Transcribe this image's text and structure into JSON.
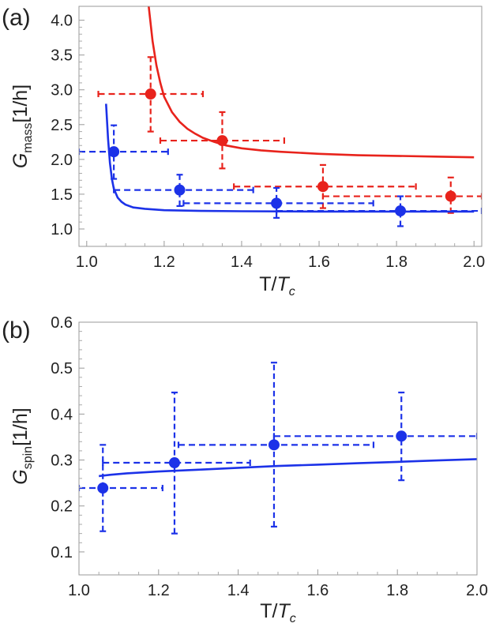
{
  "chart_data": [
    {
      "type": "scatter",
      "panel_label": "(a)",
      "xlabel_main": "T/",
      "xlabel_italic": "T",
      "xlabel_sub": "c",
      "ylabel_main": "G",
      "ylabel_sub": "mass",
      "ylabel_unit": "[1/h]",
      "xlim": [
        0.98,
        2.02
      ],
      "ylim": [
        0.75,
        4.2
      ],
      "x_ticks": [
        "1.0",
        "1.2",
        "1.4",
        "1.6",
        "1.8",
        "2.0"
      ],
      "x_tick_values": [
        1.0,
        1.2,
        1.4,
        1.6,
        1.8,
        2.0
      ],
      "y_ticks": [
        "1.0",
        "1.5",
        "2.0",
        "2.5",
        "3.0",
        "3.5",
        "4.0"
      ],
      "y_tick_values": [
        1.0,
        1.5,
        2.0,
        2.5,
        3.0,
        3.5,
        4.0
      ],
      "grid": false,
      "colors": {
        "red": "#e8231c",
        "blue": "#1c32e8"
      },
      "series": [
        {
          "color": "red",
          "points": [
            {
              "x": 1.165,
              "y": 2.94,
              "xlo": 1.03,
              "xhi": 1.3,
              "ylo": 2.4,
              "yhi": 3.47
            },
            {
              "x": 1.35,
              "y": 2.27,
              "xlo": 1.19,
              "xhi": 1.51,
              "ylo": 1.87,
              "yhi": 2.68
            },
            {
              "x": 1.61,
              "y": 1.61,
              "xlo": 1.38,
              "xhi": 1.85,
              "ylo": 1.3,
              "yhi": 1.92
            },
            {
              "x": 1.94,
              "y": 1.47,
              "xlo": 1.61,
              "xhi": 2.02,
              "ylo": 1.23,
              "yhi": 1.74
            }
          ],
          "curve": {
            "x": [
              1.16,
              1.17,
              1.18,
              1.19,
              1.2,
              1.22,
              1.24,
              1.26,
              1.28,
              1.3,
              1.33,
              1.36,
              1.4,
              1.45,
              1.5,
              1.6,
              1.7,
              1.8,
              1.9,
              2.0
            ],
            "y": [
              4.2,
              3.7,
              3.35,
              3.1,
              2.9,
              2.68,
              2.54,
              2.44,
              2.37,
              2.31,
              2.25,
              2.2,
              2.16,
              2.13,
              2.11,
              2.08,
              2.06,
              2.05,
              2.04,
              2.03
            ]
          }
        },
        {
          "color": "blue",
          "points": [
            {
              "x": 1.07,
              "y": 2.11,
              "xlo": 0.98,
              "xhi": 1.21,
              "ylo": 1.72,
              "yhi": 2.49
            },
            {
              "x": 1.24,
              "y": 1.56,
              "xlo": 1.07,
              "xhi": 1.43,
              "ylo": 1.33,
              "yhi": 1.78
            },
            {
              "x": 1.49,
              "y": 1.37,
              "xlo": 1.25,
              "xhi": 1.74,
              "ylo": 1.16,
              "yhi": 1.59
            },
            {
              "x": 1.81,
              "y": 1.26,
              "xlo": 1.49,
              "xhi": 2.02,
              "ylo": 1.04,
              "yhi": 1.47
            }
          ],
          "curve": {
            "x": [
              1.05,
              1.055,
              1.06,
              1.065,
              1.07,
              1.08,
              1.09,
              1.1,
              1.12,
              1.15,
              1.2,
              1.3,
              1.4,
              1.6,
              1.8,
              2.0
            ],
            "y": [
              2.8,
              2.3,
              1.95,
              1.72,
              1.58,
              1.45,
              1.39,
              1.35,
              1.31,
              1.29,
              1.27,
              1.26,
              1.255,
              1.25,
              1.25,
              1.25
            ]
          }
        }
      ]
    },
    {
      "type": "scatter",
      "panel_label": "(b)",
      "xlabel_main": "T/",
      "xlabel_italic": "T",
      "xlabel_sub": "c",
      "ylabel_main": "G",
      "ylabel_sub": "spin",
      "ylabel_unit": "[1/h]",
      "xlim": [
        1.0,
        2.0
      ],
      "ylim": [
        0.05,
        0.6
      ],
      "x_ticks": [
        "1.0",
        "1.2",
        "1.4",
        "1.6",
        "1.8",
        "2.0"
      ],
      "x_tick_values": [
        1.0,
        1.2,
        1.4,
        1.6,
        1.8,
        2.0
      ],
      "y_ticks": [
        "0.1",
        "0.2",
        "0.3",
        "0.4",
        "0.5",
        "0.6"
      ],
      "y_tick_values": [
        0.1,
        0.2,
        0.3,
        0.4,
        0.5,
        0.6
      ],
      "grid": false,
      "colors": {
        "blue": "#1c32e8"
      },
      "series": [
        {
          "color": "blue",
          "points": [
            {
              "x": 1.06,
              "y": 0.239,
              "xlo": 1.0,
              "xhi": 1.21,
              "ylo": 0.145,
              "yhi": 0.333
            },
            {
              "x": 1.24,
              "y": 0.294,
              "xlo": 1.06,
              "xhi": 1.43,
              "ylo": 0.14,
              "yhi": 0.447
            },
            {
              "x": 1.49,
              "y": 0.333,
              "xlo": 1.25,
              "xhi": 1.74,
              "ylo": 0.155,
              "yhi": 0.512
            },
            {
              "x": 1.81,
              "y": 0.352,
              "xlo": 1.49,
              "xhi": 2.0,
              "ylo": 0.256,
              "yhi": 0.447
            }
          ],
          "curve": {
            "x": [
              1.05,
              1.08,
              1.12,
              1.2,
              1.3,
              1.4,
              1.5,
              1.6,
              1.7,
              1.8,
              1.9,
              2.0
            ],
            "y": [
              0.265,
              0.268,
              0.271,
              0.275,
              0.279,
              0.283,
              0.287,
              0.29,
              0.293,
              0.296,
              0.299,
              0.302
            ]
          }
        }
      ]
    }
  ]
}
